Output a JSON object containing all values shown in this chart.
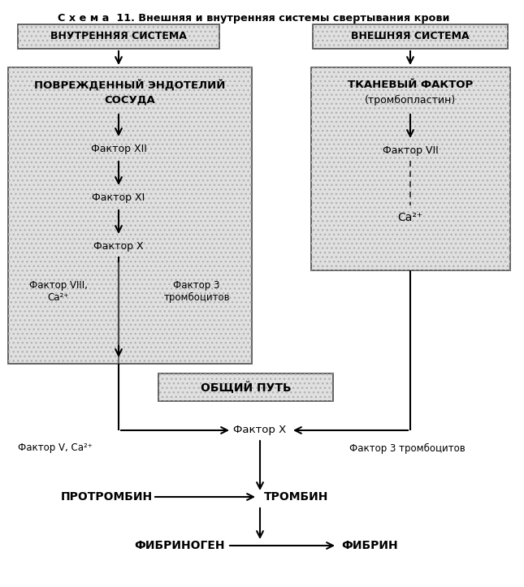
{
  "title": "С х е м а  11. Внешняя и внутренняя системы свертывания крови",
  "inner_system_label": "ВНУТРЕННЯЯ СИСТЕМА",
  "outer_system_label": "ВНЕШНЯЯ СИСТЕМА",
  "damaged_endothelium_line1": "ПОВРЕЖДЕННЫЙ ЭНДОТЕЛИЙ",
  "damaged_endothelium_line2": "СОСУДА",
  "tissue_factor_line1": "ТКАНЕВЫЙ ФАКТОР",
  "tissue_factor_line2": "(тромбопластин)",
  "factor_xii": "Фактор XII",
  "factor_xi": "Фактор XI",
  "factor_x_inner": "Фактор X",
  "factor_viii": "Фактор VIII,",
  "factor_viii_ca": "Ca²⁺",
  "factor_3_platelets_inner_line1": "Фактор 3",
  "factor_3_platelets_inner_line2": "тромбоцитов",
  "factor_vii": "Фактор VII",
  "ca2_outer": "Ca²⁺",
  "common_path_label": "ОБЩИЙ ПУТЬ",
  "factor_x_common": "Фактор X",
  "factor_v_ca": "Фактор V, Ca²⁺",
  "factor_3_platelets_outer": "Фактор 3 тромбоцитов",
  "prothrombin": "ПРОТРОМБИН",
  "thrombin": "ТРОМБИН",
  "fibrinogen": "ФИБРИНОГЕН",
  "fibrin": "ФИБРИН",
  "hatch_color": "#aaaaaa",
  "box_edge": "#333333",
  "box_fill": "#d8d8d8"
}
